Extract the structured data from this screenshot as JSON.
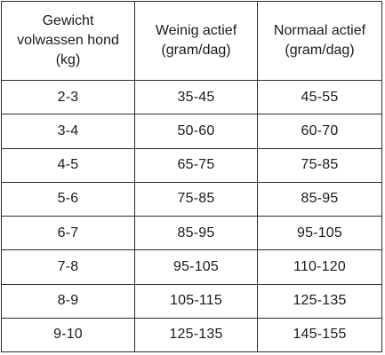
{
  "table": {
    "headers": [
      [
        "Gewicht",
        "volwassen hond",
        "(kg)"
      ],
      [
        "Weinig actief",
        "(gram/dag)"
      ],
      [
        "Normaal actief",
        "(gram/dag)"
      ]
    ],
    "rows": [
      [
        "2-3",
        "35-45",
        "45-55"
      ],
      [
        "3-4",
        "50-60",
        "60-70"
      ],
      [
        "4-5",
        "65-75",
        "75-85"
      ],
      [
        "5-6",
        "75-85",
        "85-95"
      ],
      [
        "6-7",
        "85-95",
        "95-105"
      ],
      [
        "7-8",
        "95-105",
        "110-120"
      ],
      [
        "8-9",
        "105-115",
        "125-135"
      ],
      [
        "9-10",
        "125-135",
        "145-155"
      ]
    ]
  }
}
